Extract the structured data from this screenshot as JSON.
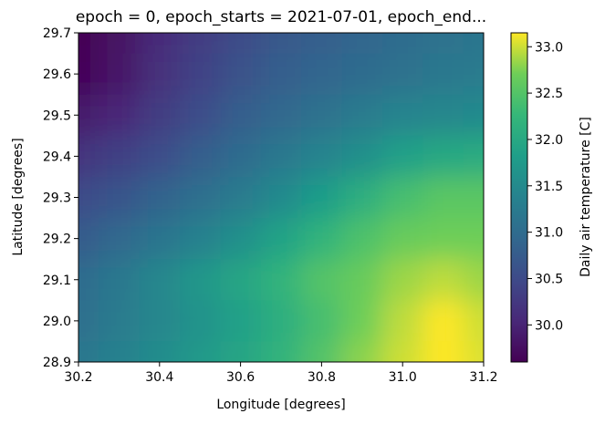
{
  "chart_data": {
    "type": "heatmap",
    "title": "epoch = 0, epoch_starts = 2021-07-01, epoch_end...",
    "xlabel": "Longitude [degrees]",
    "ylabel": "Latitude [degrees]",
    "xlim": [
      30.2,
      31.2
    ],
    "ylim": [
      28.9,
      29.7
    ],
    "x_ticks": [
      "30.2",
      "30.4",
      "30.6",
      "30.8",
      "31.0",
      "31.2"
    ],
    "y_ticks": [
      "28.9",
      "29.0",
      "29.1",
      "29.2",
      "29.3",
      "29.4",
      "29.5",
      "29.6",
      "29.7"
    ],
    "colormap": "viridis",
    "colorbar": {
      "label": "Daily air temperature [C]",
      "range": [
        29.6,
        33.15
      ],
      "ticks": [
        "30.0",
        "30.5",
        "31.0",
        "31.5",
        "32.0",
        "32.5",
        "33.0"
      ]
    },
    "grid": false,
    "x": [
      30.2,
      30.3,
      30.4,
      30.5,
      30.6,
      30.7,
      30.8,
      30.9,
      31.0,
      31.1,
      31.2
    ],
    "y": [
      29.7,
      29.6,
      29.5,
      29.4,
      29.3,
      29.2,
      29.1,
      29.0,
      28.9
    ],
    "values": [
      [
        29.6,
        29.8,
        30.1,
        30.3,
        30.5,
        30.7,
        30.8,
        30.9,
        31.0,
        31.1,
        31.15
      ],
      [
        29.65,
        29.85,
        30.15,
        30.4,
        30.6,
        30.8,
        30.9,
        31.0,
        31.1,
        31.2,
        31.25
      ],
      [
        29.9,
        30.05,
        30.3,
        30.55,
        30.8,
        30.95,
        31.1,
        31.25,
        31.4,
        31.45,
        31.5
      ],
      [
        30.2,
        30.35,
        30.55,
        30.8,
        31.0,
        31.2,
        31.4,
        31.6,
        31.85,
        32.0,
        32.05
      ],
      [
        30.5,
        30.65,
        30.85,
        31.05,
        31.25,
        31.5,
        31.8,
        32.1,
        32.4,
        32.55,
        32.55
      ],
      [
        30.75,
        30.95,
        31.15,
        31.35,
        31.6,
        31.9,
        32.2,
        32.45,
        32.65,
        32.7,
        32.7
      ],
      [
        31.0,
        31.2,
        31.45,
        31.7,
        31.95,
        32.2,
        32.5,
        32.65,
        32.85,
        32.95,
        32.85
      ],
      [
        31.05,
        31.25,
        31.45,
        31.65,
        31.85,
        32.1,
        32.4,
        32.7,
        32.95,
        33.15,
        33.0
      ],
      [
        31.2,
        31.35,
        31.55,
        31.75,
        31.95,
        32.2,
        32.5,
        32.8,
        33.0,
        33.15,
        33.05
      ]
    ]
  }
}
